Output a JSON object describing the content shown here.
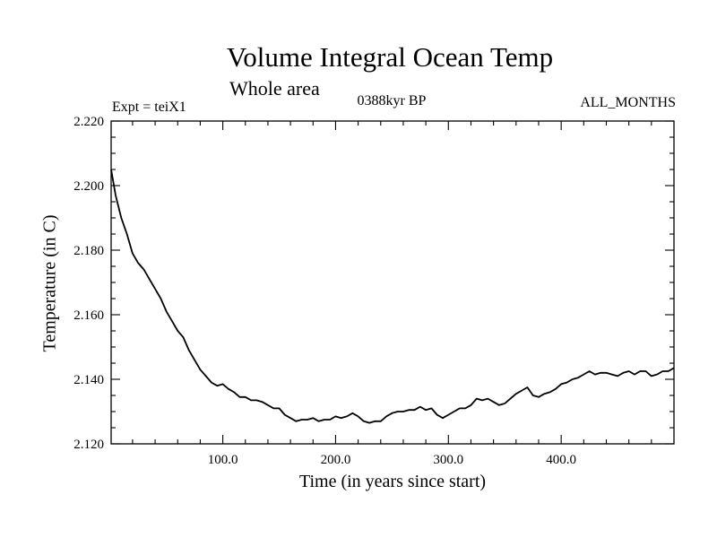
{
  "chart_data": {
    "type": "line",
    "title": "Volume Integral Ocean Temp",
    "subtitle": "Whole area",
    "annotation_left": "Expt = teiX1",
    "annotation_center": "0388kyr BP",
    "annotation_right": "ALL_MONTHS",
    "xlabel": "Time (in years since start)",
    "ylabel": "Temperature (in C)",
    "xlim": [
      1,
      500
    ],
    "ylim": [
      2.12,
      2.22
    ],
    "x_ticks": [
      100,
      200,
      300,
      400
    ],
    "x_tick_labels": [
      "100.0",
      "200.0",
      "300.0",
      "400.0"
    ],
    "y_ticks": [
      2.12,
      2.14,
      2.16,
      2.18,
      2.2,
      2.22
    ],
    "y_tick_labels": [
      "2.120",
      "2.140",
      "2.160",
      "2.180",
      "2.200",
      "2.220"
    ],
    "grid": false,
    "legend": "none",
    "series": [
      {
        "color": "#000000",
        "x": [
          1,
          5,
          10,
          15,
          20,
          25,
          30,
          35,
          40,
          45,
          50,
          55,
          60,
          65,
          70,
          75,
          80,
          85,
          90,
          95,
          100,
          105,
          110,
          115,
          120,
          125,
          130,
          135,
          140,
          145,
          150,
          155,
          160,
          165,
          170,
          175,
          180,
          185,
          190,
          195,
          200,
          205,
          210,
          215,
          220,
          225,
          230,
          235,
          240,
          245,
          250,
          255,
          260,
          265,
          270,
          275,
          280,
          285,
          290,
          295,
          300,
          305,
          310,
          315,
          320,
          325,
          330,
          335,
          340,
          345,
          350,
          355,
          360,
          365,
          370,
          375,
          380,
          385,
          390,
          395,
          400,
          405,
          410,
          415,
          420,
          425,
          430,
          435,
          440,
          445,
          450,
          455,
          460,
          465,
          470,
          475,
          480,
          485,
          490,
          495,
          500
        ],
        "y": [
          2.205,
          2.197,
          2.19,
          2.185,
          2.179,
          2.176,
          2.174,
          2.171,
          2.168,
          2.165,
          2.161,
          2.158,
          2.155,
          2.153,
          2.149,
          2.146,
          2.143,
          2.141,
          2.139,
          2.138,
          2.1385,
          2.137,
          2.136,
          2.1345,
          2.1345,
          2.1335,
          2.1335,
          2.133,
          2.132,
          2.131,
          2.131,
          2.129,
          2.128,
          2.127,
          2.1275,
          2.1275,
          2.128,
          2.127,
          2.1275,
          2.1275,
          2.1285,
          2.128,
          2.1285,
          2.1295,
          2.1285,
          2.127,
          2.1265,
          2.127,
          2.127,
          2.1285,
          2.1295,
          2.13,
          2.13,
          2.1305,
          2.1305,
          2.1315,
          2.1305,
          2.131,
          2.129,
          2.128,
          2.129,
          2.13,
          2.131,
          2.131,
          2.132,
          2.134,
          2.1335,
          2.134,
          2.133,
          2.132,
          2.1325,
          2.134,
          2.1355,
          2.1365,
          2.1375,
          2.135,
          2.1345,
          2.1355,
          2.136,
          2.137,
          2.1385,
          2.139,
          2.14,
          2.1405,
          2.1415,
          2.1425,
          2.1415,
          2.142,
          2.142,
          2.1415,
          2.141,
          2.142,
          2.1425,
          2.1415,
          2.1425,
          2.1425,
          2.141,
          2.1415,
          2.1425,
          2.1425,
          2.1435
        ]
      }
    ]
  }
}
